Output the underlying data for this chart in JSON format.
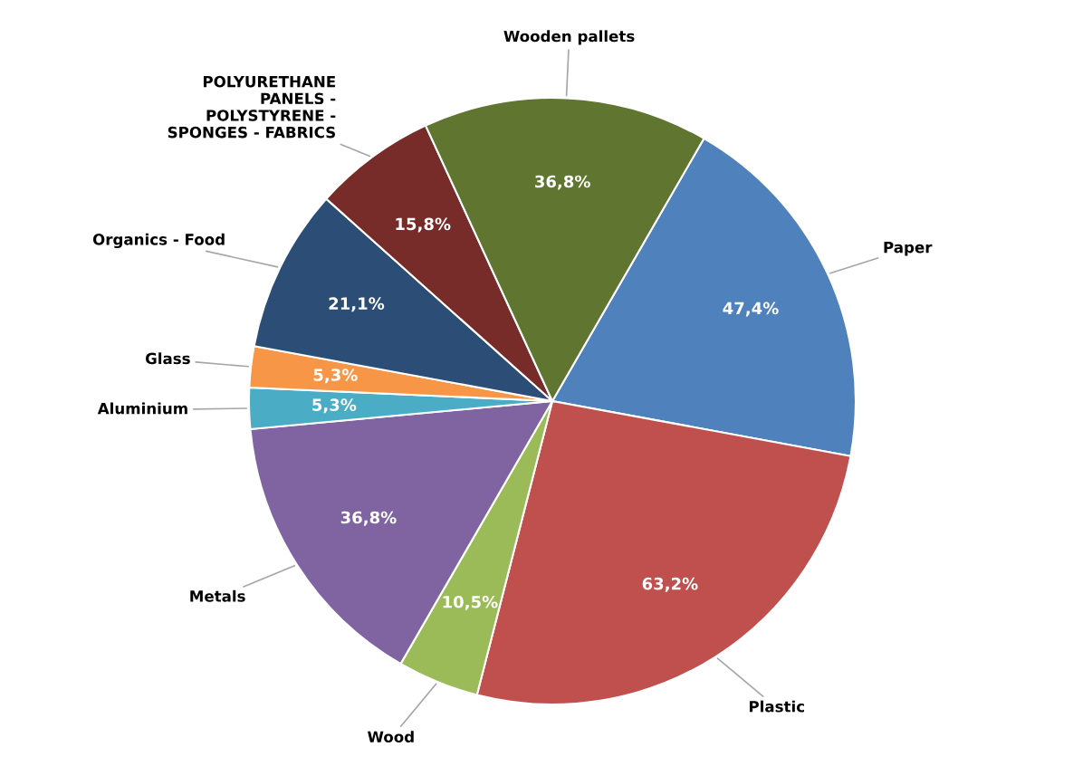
{
  "chart_data": {
    "type": "pie",
    "categories": [
      "Paper",
      "Plastic",
      "Wood",
      "Metals",
      "Aluminium",
      "Glass",
      "Organics - Food",
      "POLYURETHANE\nPANELS -\nPOLYSTYRENE -\nSPONGES - FABRICS",
      "Wooden pallets"
    ],
    "values": [
      47.4,
      63.2,
      10.5,
      36.8,
      5.3,
      5.3,
      21.1,
      15.8,
      36.8
    ],
    "value_labels": [
      "47,4%",
      "63,2%",
      "10,5%",
      "36,8%",
      "5,3%",
      "5,3%",
      "21,1%",
      "15,8%",
      "36,8%"
    ],
    "colors": [
      "#4f81bd",
      "#c0504d",
      "#9bbb59",
      "#8064a2",
      "#4bacc6",
      "#f79646",
      "#2c4d75",
      "#772c2a",
      "#5f7530"
    ],
    "legend": false
  }
}
